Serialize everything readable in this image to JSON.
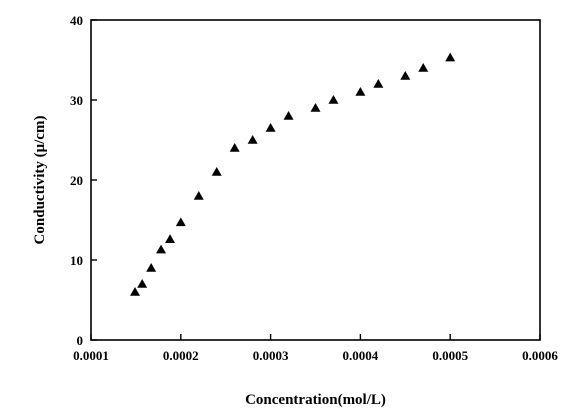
{
  "chart_data": {
    "type": "scatter",
    "title": "",
    "xlabel": "Concentration(mol/L)",
    "ylabel": "Conductivity (μ/cm)",
    "xlim": [
      0.0001,
      0.0006
    ],
    "ylim": [
      0,
      40
    ],
    "xticks": [
      "0.0001",
      "0.0002",
      "0.0003",
      "0.0004",
      "0.0005",
      "0.0006"
    ],
    "yticks": [
      "0",
      "10",
      "20",
      "30",
      "40"
    ],
    "grid": false,
    "marker": "triangle",
    "marker_color": "#000000",
    "series": [
      {
        "x": [
          0.000149,
          0.000157,
          0.000167,
          0.000178,
          0.000188,
          0.0002,
          0.00022,
          0.00024,
          0.00026,
          0.00028,
          0.0003,
          0.00032,
          0.00035,
          0.00037,
          0.0004,
          0.00042,
          0.00045,
          0.00047,
          0.0005
        ],
        "y": [
          6.0,
          7.0,
          9.0,
          11.3,
          12.6,
          14.7,
          18.0,
          21.0,
          24.0,
          25.0,
          26.5,
          28.0,
          29.0,
          30.0,
          31.0,
          32.0,
          33.0,
          34.0,
          35.3
        ]
      }
    ]
  }
}
